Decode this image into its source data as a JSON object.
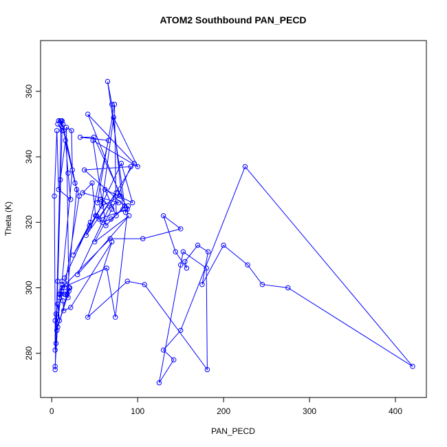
{
  "chart_data": {
    "type": "line",
    "title": "ATOM2 Southbound PAN_PECD",
    "xlabel": "PAN_PECD",
    "ylabel": "Theta (K)",
    "xlim": [
      -13,
      436
    ],
    "ylim": [
      266.5,
      375.5
    ],
    "xticks": [
      0,
      100,
      200,
      300,
      400
    ],
    "yticks": [
      280,
      300,
      320,
      340,
      360
    ],
    "grid": false,
    "legend": "none",
    "colors": {
      "series": "#0000ff",
      "axis": "#000000",
      "background": "#ffffff"
    },
    "series": [
      {
        "markers": "open-circle",
        "x": [
          4,
          9,
          12,
          6,
          20,
          15,
          45,
          25,
          60,
          40,
          75,
          30,
          90,
          50,
          70,
          92,
          38,
          85,
          63,
          48,
          100,
          72,
          58,
          80,
          42,
          96,
          55,
          88,
          49,
          33,
          66,
          44,
          52,
          81,
          94,
          62,
          75,
          73,
          53,
          57,
          67,
          78,
          36,
          47,
          51,
          59,
          69,
          83,
          70,
          65,
          86,
          89,
          74,
          64,
          12,
          68,
          106,
          150,
          130,
          144,
          157,
          155,
          170,
          182,
          175,
          200,
          228,
          245,
          275,
          420,
          225,
          150,
          130,
          142,
          125,
          150,
          153,
          180,
          181,
          108,
          88,
          42,
          70,
          22,
          14,
          13,
          10,
          9,
          11,
          15,
          19,
          21,
          16,
          18,
          29,
          13,
          12,
          8,
          10,
          14,
          7,
          12,
          5,
          10,
          16,
          19,
          22,
          8,
          6,
          3,
          4,
          4,
          5,
          7,
          9,
          7,
          20,
          17,
          23,
          24,
          12,
          15,
          32,
          27,
          11,
          4,
          7
        ],
        "y": [
          276,
          298,
          301,
          287,
          300,
          303,
          320,
          310,
          326,
          316,
          329,
          304,
          322,
          314,
          324,
          337,
          336,
          325,
          319,
          345,
          337,
          352,
          325,
          328,
          353,
          338,
          321,
          324,
          346,
          346,
          345,
          319,
          322,
          338,
          326,
          330,
          322,
          356,
          326,
          327,
          325,
          326,
          329,
          332,
          322,
          320,
          321,
          324,
          356,
          363,
          323,
          325,
          291,
          306,
          300,
          315,
          315,
          318,
          322,
          311,
          306,
          308,
          313,
          311,
          301,
          313,
          307,
          301,
          300,
          276,
          337,
          287,
          281,
          278,
          271,
          307,
          311,
          306,
          275,
          301,
          302,
          291,
          314,
          294,
          293,
          296,
          298,
          297,
          299,
          298,
          297,
          300,
          298,
          298,
          330,
          350,
          351,
          351,
          351,
          348,
          350,
          348,
          283,
          333,
          345,
          335,
          327,
          330,
          348,
          328,
          290,
          281,
          292,
          295,
          290,
          288,
          299,
          349,
          348,
          336,
          302,
          300,
          328,
          332,
          351,
          275,
          302
        ]
      }
    ]
  }
}
